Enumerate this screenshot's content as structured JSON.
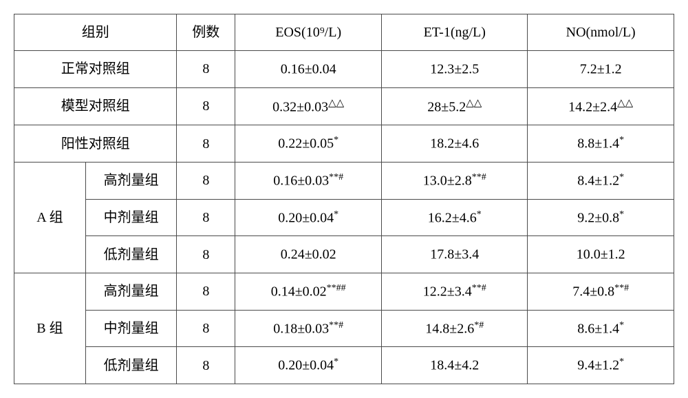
{
  "table": {
    "type": "table",
    "background_color": "#ffffff",
    "border_color": "#4a4a4a",
    "text_color": "#000000",
    "font_size": 20,
    "headers": {
      "group": "组别",
      "count": "例数",
      "eos": "EOS(10⁹/L)",
      "et1": "ET-1(ng/L)",
      "no": "NO(nmol/L)"
    },
    "rows": [
      {
        "group_main": "正常对照组",
        "group_sub": "",
        "count": "8",
        "eos": "0.16±0.04",
        "eos_sup": "",
        "et1": "12.3±2.5",
        "et1_sup": "",
        "no": "7.2±1.2",
        "no_sup": ""
      },
      {
        "group_main": "模型对照组",
        "group_sub": "",
        "count": "8",
        "eos": "0.32±0.03",
        "eos_sup": "△△",
        "et1": "28±5.2",
        "et1_sup": "△△",
        "no": "14.2±2.4",
        "no_sup": "△△"
      },
      {
        "group_main": "阳性对照组",
        "group_sub": "",
        "count": "8",
        "eos": "0.22±0.05",
        "eos_sup": "*",
        "et1": "18.2±4.6",
        "et1_sup": "",
        "no": "8.8±1.4",
        "no_sup": "*"
      },
      {
        "group_main": "A 组",
        "group_sub": "高剂量组",
        "count": "8",
        "eos": "0.16±0.03",
        "eos_sup": "**#",
        "et1": "13.0±2.8",
        "et1_sup": "**#",
        "no": "8.4±1.2",
        "no_sup": "*"
      },
      {
        "group_main": "",
        "group_sub": "中剂量组",
        "count": "8",
        "eos": "0.20±0.04",
        "eos_sup": "*",
        "et1": "16.2±4.6",
        "et1_sup": "*",
        "no": "9.2±0.8",
        "no_sup": "*"
      },
      {
        "group_main": "",
        "group_sub": "低剂量组",
        "count": "8",
        "eos": "0.24±0.02",
        "eos_sup": "",
        "et1": "17.8±3.4",
        "et1_sup": "",
        "no": "10.0±1.2",
        "no_sup": ""
      },
      {
        "group_main": "B 组",
        "group_sub": "高剂量组",
        "count": "8",
        "eos": "0.14±0.02",
        "eos_sup": "**##",
        "et1": "12.2±3.4",
        "et1_sup": "**#",
        "no": "7.4±0.8",
        "no_sup": "**#"
      },
      {
        "group_main": "",
        "group_sub": "中剂量组",
        "count": "8",
        "eos": "0.18±0.03",
        "eos_sup": "**#",
        "et1": "14.8±2.6",
        "et1_sup": "*#",
        "no": "8.6±1.4",
        "no_sup": "*"
      },
      {
        "group_main": "",
        "group_sub": "低剂量组",
        "count": "8",
        "eos": "0.20±0.04",
        "eos_sup": "*",
        "et1": "18.4±4.2",
        "et1_sup": "",
        "no": "9.4±1.2",
        "no_sup": "*"
      }
    ],
    "column_widths": {
      "group_main": 90,
      "group_sub": 120,
      "count": 70,
      "eos": 200,
      "et1": 200,
      "no": 200
    }
  }
}
